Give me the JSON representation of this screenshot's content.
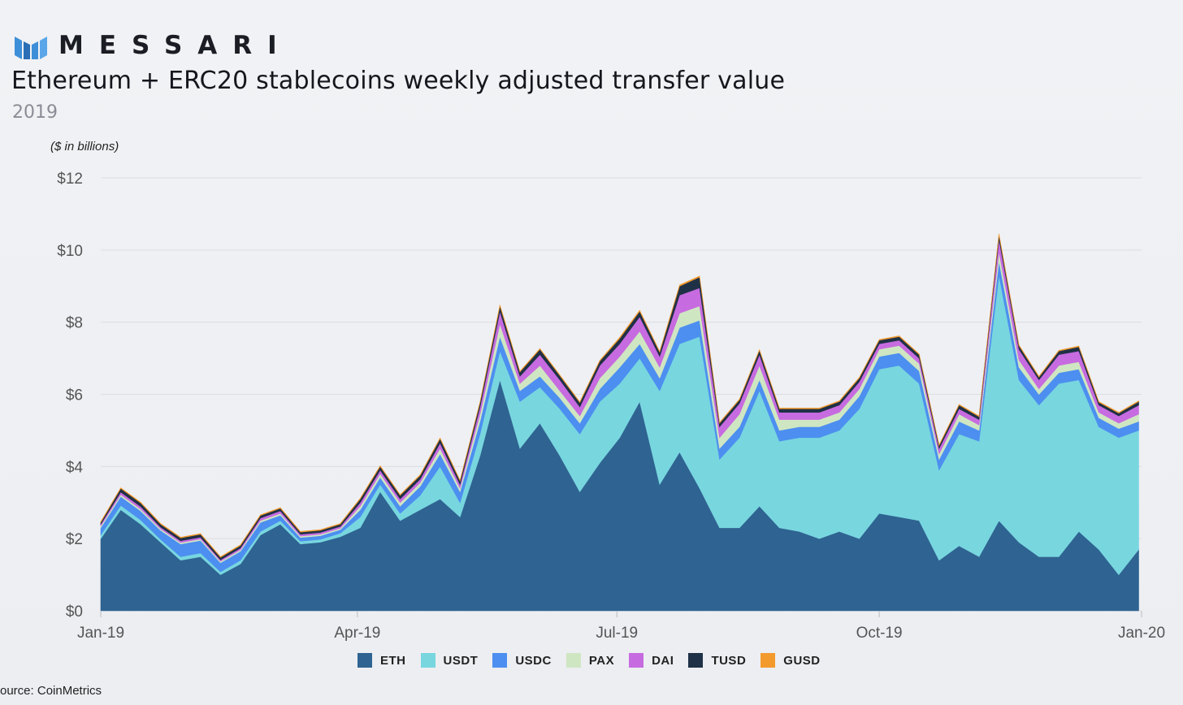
{
  "header": {
    "logo_text": "MESSARI",
    "title": "Ethereum + ERC20 stablecoins weekly adjusted transfer value",
    "subtitle": "2019",
    "unit_note": "($ in billions)"
  },
  "footer": {
    "source": "ource: CoinMetrics"
  },
  "colors": {
    "ETH": "#2f6391",
    "USDT": "#78d6df",
    "USDC": "#4c8ff0",
    "PAX": "#cfe6c2",
    "DAI": "#c76be0",
    "TUSD": "#1f3146",
    "GUSD": "#f39a2c",
    "gridline": "#dcdde1",
    "logo_blue": "#3d8fd8"
  },
  "chart_data": {
    "type": "area",
    "stacked": true,
    "title": "Ethereum + ERC20 stablecoins weekly adjusted transfer value",
    "subtitle": "2019",
    "ylabel": "($ in billions)",
    "xlabel": "",
    "ylim": [
      0,
      12
    ],
    "yticks": [
      0,
      2,
      4,
      6,
      8,
      10,
      12
    ],
    "ytick_labels": [
      "$0",
      "$2",
      "$4",
      "$6",
      "$8",
      "$10",
      "$12"
    ],
    "xticks": [
      "2019-01-01",
      "2019-04-01",
      "2019-07-01",
      "2019-10-01",
      "2020-01-01"
    ],
    "xtick_labels": [
      "Jan-19",
      "Apr-19",
      "Jul-19",
      "Oct-19",
      "Jan-20"
    ],
    "xlim": [
      "2019-01-01",
      "2020-01-01"
    ],
    "grid": true,
    "legend_position": "bottom",
    "x": [
      "2019-01-01",
      "2019-01-08",
      "2019-01-15",
      "2019-01-22",
      "2019-01-29",
      "2019-02-05",
      "2019-02-12",
      "2019-02-19",
      "2019-02-26",
      "2019-03-05",
      "2019-03-12",
      "2019-03-19",
      "2019-03-26",
      "2019-04-02",
      "2019-04-09",
      "2019-04-16",
      "2019-04-23",
      "2019-04-30",
      "2019-05-07",
      "2019-05-14",
      "2019-05-21",
      "2019-05-28",
      "2019-06-04",
      "2019-06-11",
      "2019-06-18",
      "2019-06-25",
      "2019-07-02",
      "2019-07-09",
      "2019-07-16",
      "2019-07-23",
      "2019-07-30",
      "2019-08-06",
      "2019-08-13",
      "2019-08-20",
      "2019-08-27",
      "2019-09-03",
      "2019-09-10",
      "2019-09-17",
      "2019-09-24",
      "2019-10-01",
      "2019-10-08",
      "2019-10-15",
      "2019-10-22",
      "2019-10-29",
      "2019-11-05",
      "2019-11-12",
      "2019-11-19",
      "2019-11-26",
      "2019-12-03",
      "2019-12-10",
      "2019-12-17",
      "2019-12-24",
      "2019-12-31"
    ],
    "series": [
      {
        "name": "ETH",
        "values": [
          2.0,
          2.8,
          2.4,
          1.9,
          1.4,
          1.5,
          1.0,
          1.3,
          2.1,
          2.4,
          1.85,
          1.9,
          2.05,
          2.3,
          3.3,
          2.5,
          2.8,
          3.1,
          2.6,
          4.3,
          6.4,
          4.5,
          5.2,
          4.3,
          3.3,
          4.1,
          4.8,
          5.8,
          3.5,
          4.4,
          3.4,
          2.3,
          2.3,
          2.9,
          2.3,
          2.2,
          2.0,
          2.2,
          2.0,
          2.7,
          2.6,
          2.5,
          1.4,
          1.8,
          1.5,
          2.5,
          1.9,
          1.5,
          1.5,
          2.2,
          1.7,
          1.0,
          1.7
        ]
      },
      {
        "name": "USDT",
        "values": [
          0.1,
          0.12,
          0.12,
          0.08,
          0.1,
          0.1,
          0.08,
          0.1,
          0.1,
          0.1,
          0.08,
          0.08,
          0.1,
          0.3,
          0.2,
          0.2,
          0.4,
          0.9,
          0.4,
          0.6,
          0.8,
          1.3,
          1.0,
          1.3,
          1.6,
          1.7,
          1.5,
          1.2,
          2.6,
          3.0,
          4.2,
          1.9,
          2.5,
          3.2,
          2.4,
          2.6,
          2.8,
          2.8,
          3.6,
          4.0,
          4.2,
          3.8,
          2.5,
          3.1,
          3.2,
          6.8,
          4.5,
          4.2,
          4.8,
          4.2,
          3.4,
          3.8,
          3.3
        ]
      },
      {
        "name": "USDC",
        "values": [
          0.2,
          0.25,
          0.25,
          0.25,
          0.35,
          0.35,
          0.25,
          0.25,
          0.25,
          0.15,
          0.1,
          0.1,
          0.1,
          0.2,
          0.2,
          0.2,
          0.25,
          0.35,
          0.3,
          0.35,
          0.4,
          0.3,
          0.3,
          0.3,
          0.3,
          0.35,
          0.45,
          0.4,
          0.35,
          0.45,
          0.45,
          0.3,
          0.3,
          0.3,
          0.3,
          0.3,
          0.3,
          0.3,
          0.35,
          0.35,
          0.35,
          0.35,
          0.3,
          0.35,
          0.3,
          0.4,
          0.35,
          0.3,
          0.3,
          0.3,
          0.25,
          0.25,
          0.25
        ]
      },
      {
        "name": "PAX",
        "values": [
          0.05,
          0.05,
          0.05,
          0.04,
          0.04,
          0.04,
          0.04,
          0.04,
          0.05,
          0.05,
          0.04,
          0.04,
          0.04,
          0.1,
          0.1,
          0.1,
          0.1,
          0.15,
          0.1,
          0.2,
          0.35,
          0.2,
          0.3,
          0.2,
          0.2,
          0.3,
          0.3,
          0.35,
          0.3,
          0.4,
          0.4,
          0.3,
          0.35,
          0.4,
          0.3,
          0.2,
          0.2,
          0.2,
          0.2,
          0.2,
          0.2,
          0.2,
          0.15,
          0.2,
          0.15,
          0.25,
          0.2,
          0.15,
          0.2,
          0.2,
          0.15,
          0.15,
          0.2
        ]
      },
      {
        "name": "DAI",
        "values": [
          0.05,
          0.07,
          0.07,
          0.05,
          0.05,
          0.05,
          0.04,
          0.05,
          0.07,
          0.07,
          0.05,
          0.05,
          0.05,
          0.1,
          0.1,
          0.1,
          0.1,
          0.15,
          0.1,
          0.2,
          0.35,
          0.2,
          0.3,
          0.3,
          0.25,
          0.35,
          0.35,
          0.4,
          0.3,
          0.5,
          0.5,
          0.3,
          0.3,
          0.3,
          0.2,
          0.2,
          0.2,
          0.2,
          0.2,
          0.15,
          0.15,
          0.15,
          0.15,
          0.15,
          0.15,
          0.35,
          0.3,
          0.25,
          0.3,
          0.3,
          0.2,
          0.2,
          0.25
        ]
      },
      {
        "name": "TUSD",
        "values": [
          0.05,
          0.1,
          0.1,
          0.08,
          0.08,
          0.08,
          0.07,
          0.07,
          0.07,
          0.07,
          0.06,
          0.06,
          0.06,
          0.1,
          0.1,
          0.1,
          0.1,
          0.12,
          0.1,
          0.12,
          0.15,
          0.12,
          0.15,
          0.12,
          0.12,
          0.12,
          0.15,
          0.15,
          0.12,
          0.25,
          0.3,
          0.1,
          0.1,
          0.12,
          0.1,
          0.1,
          0.1,
          0.1,
          0.1,
          0.1,
          0.1,
          0.1,
          0.08,
          0.1,
          0.08,
          0.12,
          0.1,
          0.08,
          0.1,
          0.12,
          0.08,
          0.08,
          0.1
        ]
      },
      {
        "name": "GUSD",
        "values": [
          0.02,
          0.02,
          0.02,
          0.02,
          0.02,
          0.02,
          0.02,
          0.02,
          0.02,
          0.02,
          0.02,
          0.02,
          0.02,
          0.02,
          0.02,
          0.02,
          0.02,
          0.02,
          0.02,
          0.02,
          0.03,
          0.02,
          0.02,
          0.02,
          0.02,
          0.02,
          0.03,
          0.03,
          0.02,
          0.03,
          0.03,
          0.02,
          0.02,
          0.02,
          0.02,
          0.02,
          0.02,
          0.02,
          0.02,
          0.02,
          0.02,
          0.02,
          0.02,
          0.02,
          0.02,
          0.03,
          0.02,
          0.02,
          0.02,
          0.02,
          0.02,
          0.02,
          0.02
        ]
      }
    ]
  }
}
